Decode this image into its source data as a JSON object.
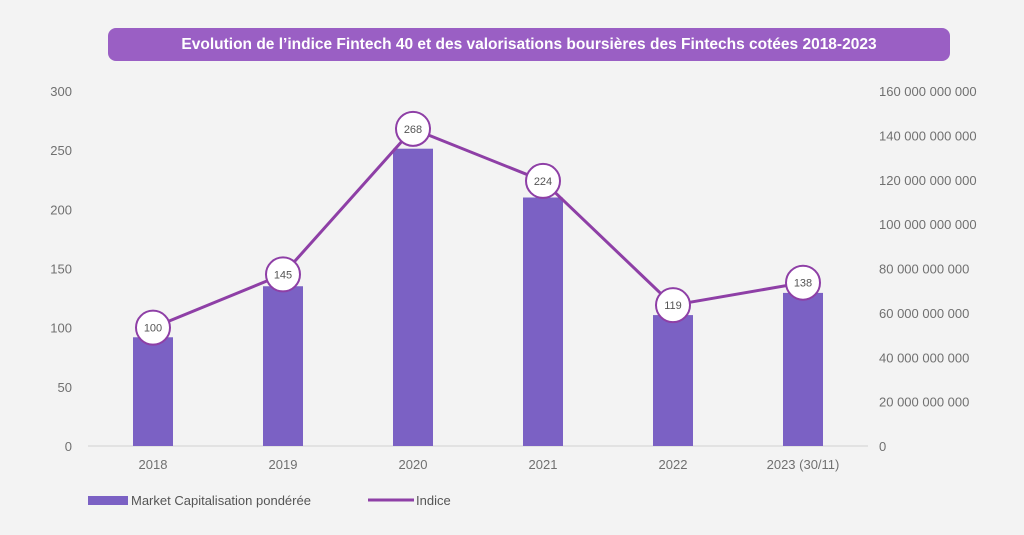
{
  "chart_data": {
    "type": "bar+line",
    "title": "Evolution de l’indice Fintech 40 et des valorisations boursières des Fintechs cotées 2018-2023",
    "categories": [
      "2018",
      "2019",
      "2020",
      "2021",
      "2022",
      "2023 (30/11)"
    ],
    "left_axis": {
      "min": 0,
      "max": 300,
      "ticks": [
        "0",
        "50",
        "100",
        "150",
        "200",
        "250",
        "300"
      ]
    },
    "right_axis": {
      "min": 0,
      "max": 160000000000,
      "ticks": [
        "0",
        "20 000 000 000",
        "40 000 000 000",
        "60 000 000 000",
        "80 000 000 000",
        "100 000 000 000",
        "120 000 000 000",
        "140 000 000 000",
        "160 000 000 000"
      ]
    },
    "series": [
      {
        "name": "Market Capitalisation pondérée",
        "type": "bar",
        "axis": "right",
        "color": "#7b61c4",
        "values": [
          49000000000,
          72000000000,
          134000000000,
          112000000000,
          59000000000,
          69000000000
        ]
      },
      {
        "name": "Indice",
        "type": "line",
        "axis": "left",
        "color": "#8e3fa6",
        "values": [
          100,
          145,
          268,
          224,
          119,
          138
        ]
      }
    ],
    "grid": false,
    "legend_position": "bottom-left"
  }
}
